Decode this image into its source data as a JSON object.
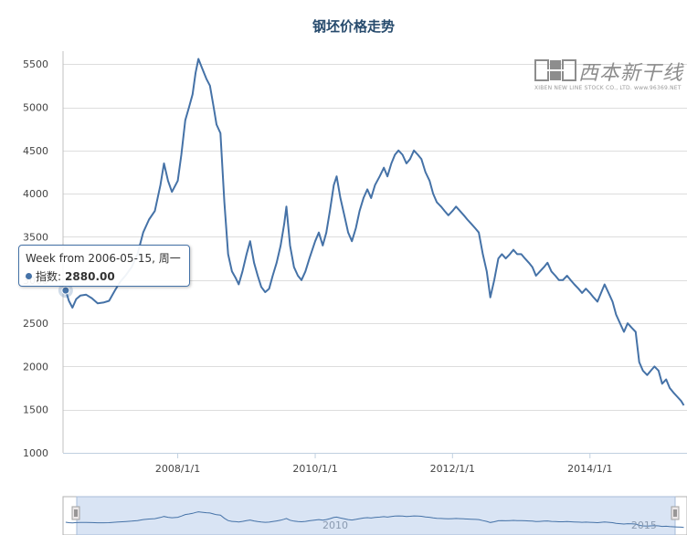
{
  "chart_data": {
    "type": "line",
    "title": "钢坯价格走势",
    "series": [
      {
        "name": "指数",
        "color": "#4572a7",
        "points": [
          [
            "2006-05-15",
            2880
          ],
          [
            "2006-06-01",
            2760
          ],
          [
            "2006-06-20",
            2680
          ],
          [
            "2006-07-10",
            2780
          ],
          [
            "2006-08-01",
            2820
          ],
          [
            "2006-09-01",
            2830
          ],
          [
            "2006-10-01",
            2790
          ],
          [
            "2006-11-01",
            2730
          ],
          [
            "2006-12-01",
            2740
          ],
          [
            "2007-01-01",
            2760
          ],
          [
            "2007-02-01",
            2880
          ],
          [
            "2007-03-01",
            2980
          ],
          [
            "2007-04-01",
            3060
          ],
          [
            "2007-05-01",
            3150
          ],
          [
            "2007-06-01",
            3300
          ],
          [
            "2007-07-01",
            3550
          ],
          [
            "2007-08-01",
            3700
          ],
          [
            "2007-09-01",
            3800
          ],
          [
            "2007-10-01",
            4100
          ],
          [
            "2007-10-20",
            4350
          ],
          [
            "2007-11-10",
            4150
          ],
          [
            "2007-12-01",
            4020
          ],
          [
            "2008-01-01",
            4150
          ],
          [
            "2008-01-20",
            4450
          ],
          [
            "2008-02-10",
            4850
          ],
          [
            "2008-03-01",
            5000
          ],
          [
            "2008-03-20",
            5150
          ],
          [
            "2008-04-05",
            5400
          ],
          [
            "2008-04-20",
            5560
          ],
          [
            "2008-05-10",
            5450
          ],
          [
            "2008-06-01",
            5330
          ],
          [
            "2008-06-20",
            5250
          ],
          [
            "2008-07-10",
            5000
          ],
          [
            "2008-07-25",
            4800
          ],
          [
            "2008-08-15",
            4700
          ],
          [
            "2008-09-05",
            3900
          ],
          [
            "2008-09-25",
            3300
          ],
          [
            "2008-10-15",
            3100
          ],
          [
            "2008-11-05",
            3020
          ],
          [
            "2008-11-20",
            2950
          ],
          [
            "2008-12-10",
            3100
          ],
          [
            "2009-01-01",
            3300
          ],
          [
            "2009-01-20",
            3450
          ],
          [
            "2009-02-10",
            3200
          ],
          [
            "2009-03-01",
            3050
          ],
          [
            "2009-03-20",
            2920
          ],
          [
            "2009-04-10",
            2860
          ],
          [
            "2009-05-01",
            2900
          ],
          [
            "2009-05-20",
            3050
          ],
          [
            "2009-06-10",
            3200
          ],
          [
            "2009-07-01",
            3400
          ],
          [
            "2009-07-20",
            3650
          ],
          [
            "2009-08-01",
            3850
          ],
          [
            "2009-08-20",
            3400
          ],
          [
            "2009-09-10",
            3150
          ],
          [
            "2009-10-01",
            3050
          ],
          [
            "2009-10-20",
            3000
          ],
          [
            "2009-11-10",
            3100
          ],
          [
            "2009-12-01",
            3250
          ],
          [
            "2010-01-01",
            3450
          ],
          [
            "2010-01-20",
            3550
          ],
          [
            "2010-02-10",
            3400
          ],
          [
            "2010-03-01",
            3550
          ],
          [
            "2010-03-20",
            3800
          ],
          [
            "2010-04-10",
            4100
          ],
          [
            "2010-04-25",
            4200
          ],
          [
            "2010-05-15",
            3950
          ],
          [
            "2010-06-05",
            3750
          ],
          [
            "2010-06-25",
            3550
          ],
          [
            "2010-07-15",
            3450
          ],
          [
            "2010-08-05",
            3600
          ],
          [
            "2010-08-25",
            3800
          ],
          [
            "2010-09-15",
            3950
          ],
          [
            "2010-10-05",
            4050
          ],
          [
            "2010-10-25",
            3950
          ],
          [
            "2010-11-15",
            4100
          ],
          [
            "2010-12-10",
            4200
          ],
          [
            "2011-01-01",
            4300
          ],
          [
            "2011-01-20",
            4200
          ],
          [
            "2011-02-10",
            4350
          ],
          [
            "2011-03-01",
            4450
          ],
          [
            "2011-03-20",
            4500
          ],
          [
            "2011-04-10",
            4450
          ],
          [
            "2011-05-01",
            4350
          ],
          [
            "2011-05-20",
            4400
          ],
          [
            "2011-06-10",
            4500
          ],
          [
            "2011-07-01",
            4450
          ],
          [
            "2011-07-20",
            4400
          ],
          [
            "2011-08-10",
            4250
          ],
          [
            "2011-09-01",
            4150
          ],
          [
            "2011-09-20",
            4000
          ],
          [
            "2011-10-10",
            3900
          ],
          [
            "2011-11-01",
            3850
          ],
          [
            "2011-11-20",
            3800
          ],
          [
            "2011-12-10",
            3750
          ],
          [
            "2012-01-01",
            3800
          ],
          [
            "2012-01-20",
            3850
          ],
          [
            "2012-02-10",
            3800
          ],
          [
            "2012-03-01",
            3750
          ],
          [
            "2012-03-20",
            3700
          ],
          [
            "2012-04-10",
            3650
          ],
          [
            "2012-05-01",
            3600
          ],
          [
            "2012-05-20",
            3550
          ],
          [
            "2012-06-10",
            3300
          ],
          [
            "2012-07-01",
            3100
          ],
          [
            "2012-07-20",
            2800
          ],
          [
            "2012-08-10",
            3000
          ],
          [
            "2012-09-01",
            3250
          ],
          [
            "2012-09-20",
            3300
          ],
          [
            "2012-10-10",
            3250
          ],
          [
            "2012-11-01",
            3300
          ],
          [
            "2012-11-20",
            3350
          ],
          [
            "2012-12-10",
            3300
          ],
          [
            "2013-01-01",
            3300
          ],
          [
            "2013-01-20",
            3250
          ],
          [
            "2013-02-10",
            3200
          ],
          [
            "2013-03-01",
            3150
          ],
          [
            "2013-03-20",
            3050
          ],
          [
            "2013-04-10",
            3100
          ],
          [
            "2013-05-01",
            3150
          ],
          [
            "2013-05-20",
            3200
          ],
          [
            "2013-06-10",
            3100
          ],
          [
            "2013-07-01",
            3050
          ],
          [
            "2013-07-20",
            3000
          ],
          [
            "2013-08-10",
            3000
          ],
          [
            "2013-09-01",
            3050
          ],
          [
            "2013-09-20",
            3000
          ],
          [
            "2013-10-10",
            2950
          ],
          [
            "2013-11-01",
            2900
          ],
          [
            "2013-11-20",
            2850
          ],
          [
            "2013-12-10",
            2900
          ],
          [
            "2014-01-01",
            2850
          ],
          [
            "2014-01-20",
            2800
          ],
          [
            "2014-02-10",
            2750
          ],
          [
            "2014-03-01",
            2850
          ],
          [
            "2014-03-20",
            2950
          ],
          [
            "2014-04-10",
            2850
          ],
          [
            "2014-05-01",
            2750
          ],
          [
            "2014-05-20",
            2600
          ],
          [
            "2014-06-10",
            2500
          ],
          [
            "2014-07-01",
            2400
          ],
          [
            "2014-07-20",
            2500
          ],
          [
            "2014-08-10",
            2450
          ],
          [
            "2014-09-01",
            2400
          ],
          [
            "2014-09-20",
            2050
          ],
          [
            "2014-10-10",
            1950
          ],
          [
            "2014-11-01",
            1900
          ],
          [
            "2014-11-20",
            1950
          ],
          [
            "2014-12-10",
            2000
          ],
          [
            "2015-01-01",
            1950
          ],
          [
            "2015-01-20",
            1800
          ],
          [
            "2015-02-10",
            1850
          ],
          [
            "2015-03-01",
            1750
          ],
          [
            "2015-03-20",
            1700
          ],
          [
            "2015-04-10",
            1650
          ],
          [
            "2015-05-01",
            1600
          ],
          [
            "2015-05-15",
            1550
          ]
        ]
      }
    ],
    "x_ticks": [
      "2008/1/1",
      "2010/1/1",
      "2012/1/1",
      "2014/1/1"
    ],
    "y_ticks": [
      1000,
      1500,
      2000,
      2500,
      3000,
      3500,
      4000,
      4500,
      5000,
      5500
    ],
    "ylim": [
      1000,
      5650
    ],
    "xlim": [
      "2006-05-01",
      "2015-06-01"
    ],
    "grid": true,
    "tooltip": {
      "line1": "Week from 2006-05-15, 周一",
      "series_label": "指数:",
      "value": "2880.00"
    },
    "navigator": {
      "labels": [
        "2010",
        "2015"
      ]
    }
  },
  "watermark": {
    "cn": "西本新干线",
    "en": "XIBEN NEW LINE STOCK CO., LTD.  www.96369.NET"
  }
}
